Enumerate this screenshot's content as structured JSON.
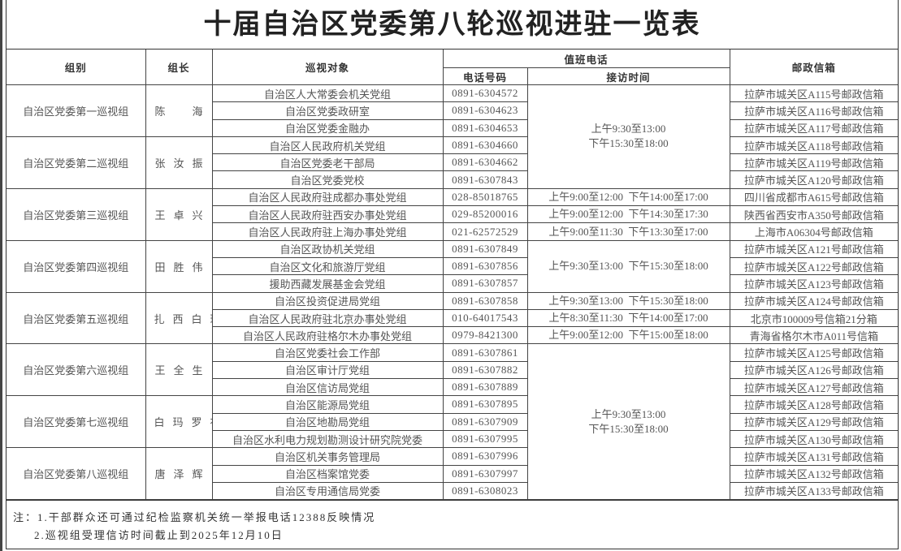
{
  "title": "十届自治区党委第八轮巡视进驻一览表",
  "headers": {
    "group": "组别",
    "leader": "组长",
    "target": "巡视对象",
    "duty_phone": "值班电话",
    "phone_number": "电话号码",
    "reception_time": "接访时间",
    "mailbox": "邮政信箱"
  },
  "groups": [
    {
      "name": "自治区党委第一巡视组",
      "leader": "陈　海",
      "targets": [
        {
          "name": "自治区人大常委会机关党组",
          "phone": "0891-6304572",
          "mailbox": "拉萨市城关区A115号邮政信箱"
        },
        {
          "name": "自治区党委政研室",
          "phone": "0891-6304623",
          "mailbox": "拉萨市城关区A116号邮政信箱"
        },
        {
          "name": "自治区党委金融办",
          "phone": "0891-6304653",
          "mailbox": "拉萨市城关区A117号邮政信箱"
        }
      ]
    },
    {
      "name": "自治区党委第二巡视组",
      "leader": "张汝振",
      "targets": [
        {
          "name": "自治区人民政府机关党组",
          "phone": "0891-6304660",
          "mailbox": "拉萨市城关区A118号邮政信箱"
        },
        {
          "name": "自治区党委老干部局",
          "phone": "0891-6304662",
          "mailbox": "拉萨市城关区A119号邮政信箱"
        },
        {
          "name": "自治区党委党校",
          "phone": "0891-6307843",
          "mailbox": "拉萨市城关区A120号邮政信箱"
        }
      ]
    },
    {
      "name": "自治区党委第三巡视组",
      "leader": "王卓兴",
      "targets": [
        {
          "name": "自治区人民政府驻成都办事处党组",
          "phone": "028-85018765",
          "mailbox": "四川省成都市A615号邮政信箱"
        },
        {
          "name": "自治区人民政府驻西安办事处党组",
          "phone": "029-85200016",
          "mailbox": "陕西省西安市A350号邮政信箱"
        },
        {
          "name": "自治区人民政府驻上海办事处党组",
          "phone": "021-62572529",
          "mailbox": "上海市A06304号邮政信箱"
        }
      ]
    },
    {
      "name": "自治区党委第四巡视组",
      "leader": "田胜伟",
      "targets": [
        {
          "name": "自治区政协机关党组",
          "phone": "0891-6307849",
          "mailbox": "拉萨市城关区A121号邮政信箱"
        },
        {
          "name": "自治区文化和旅游厅党组",
          "phone": "0891-6307856",
          "mailbox": "拉萨市城关区A122号邮政信箱"
        },
        {
          "name": "援助西藏发展基金会党组",
          "phone": "0891-6307857",
          "mailbox": "拉萨市城关区A123号邮政信箱"
        }
      ]
    },
    {
      "name": "自治区党委第五巡视组",
      "leader": "扎西白珍",
      "targets": [
        {
          "name": "自治区投资促进局党组",
          "phone": "0891-6307858",
          "mailbox": "拉萨市城关区A124号邮政信箱"
        },
        {
          "name": "自治区人民政府驻北京办事处党组",
          "phone": "010-64017543",
          "mailbox": "北京市100009号信箱21分箱"
        },
        {
          "name": "自治区人民政府驻格尔木办事处党组",
          "phone": "0979-8421300",
          "mailbox": "青海省格尔木市A011号信箱"
        }
      ]
    },
    {
      "name": "自治区党委第六巡视组",
      "leader": "王全生",
      "targets": [
        {
          "name": "自治区党委社会工作部",
          "phone": "0891-6307861",
          "mailbox": "拉萨市城关区A125号邮政信箱"
        },
        {
          "name": "自治区审计厅党组",
          "phone": "0891-6307882",
          "mailbox": "拉萨市城关区A126号邮政信箱"
        },
        {
          "name": "自治区信访局党组",
          "phone": "0891-6307889",
          "mailbox": "拉萨市城关区A127号邮政信箱"
        }
      ]
    },
    {
      "name": "自治区党委第七巡视组",
      "leader": "白玛罗布",
      "targets": [
        {
          "name": "自治区能源局党组",
          "phone": "0891-6307895",
          "mailbox": "拉萨市城关区A128号邮政信箱"
        },
        {
          "name": "自治区地勘局党组",
          "phone": "0891-6307909",
          "mailbox": "拉萨市城关区A129号邮政信箱"
        },
        {
          "name": "自治区水利电力规划勘测设计研究院党委",
          "phone": "0891-6307995",
          "mailbox": "拉萨市城关区A130号邮政信箱"
        }
      ]
    },
    {
      "name": "自治区党委第八巡视组",
      "leader": "唐泽辉",
      "targets": [
        {
          "name": "自治区机关事务管理局",
          "phone": "0891-6307996",
          "mailbox": "拉萨市城关区A131号邮政信箱"
        },
        {
          "name": "自治区档案馆党委",
          "phone": "0891-6307997",
          "mailbox": "拉萨市城关区A132号邮政信箱"
        },
        {
          "name": "自治区专用通信局党委",
          "phone": "0891-6308023",
          "mailbox": "拉萨市城关区A133号邮政信箱"
        }
      ]
    }
  ],
  "reception_blocks": [
    {
      "span": 6,
      "lines": [
        "上午9:30至13:00",
        "下午15:30至18:00"
      ]
    },
    {
      "span": 1,
      "lines": [
        "上午9:00至12:00  下午14:00至17:00"
      ]
    },
    {
      "span": 1,
      "lines": [
        "上午9:00至12:00  下午14:30至17:30"
      ]
    },
    {
      "span": 1,
      "lines": [
        "上午9:00至11:30  下午13:30至17:00"
      ]
    },
    {
      "span": 3,
      "lines": [
        "上午9:30至13:00  下午15:30至18:00"
      ]
    },
    {
      "span": 1,
      "lines": [
        "上午9:30至13:00  下午15:30至18:00"
      ]
    },
    {
      "span": 1,
      "lines": [
        "上午8:30至11:30  下午14:00至17:00"
      ]
    },
    {
      "span": 1,
      "lines": [
        "上午9:00至12:00  下午15:00至18:00"
      ]
    },
    {
      "span": 9,
      "lines": [
        "上午9:30至13:00",
        "下午15:30至18:00"
      ]
    }
  ],
  "notes": {
    "line1": "注：1.干部群众还可通过纪检监察机关统一举报电话12388反映情况",
    "line2": "2.巡视组受理信访时间截止到2025年12月10日"
  }
}
